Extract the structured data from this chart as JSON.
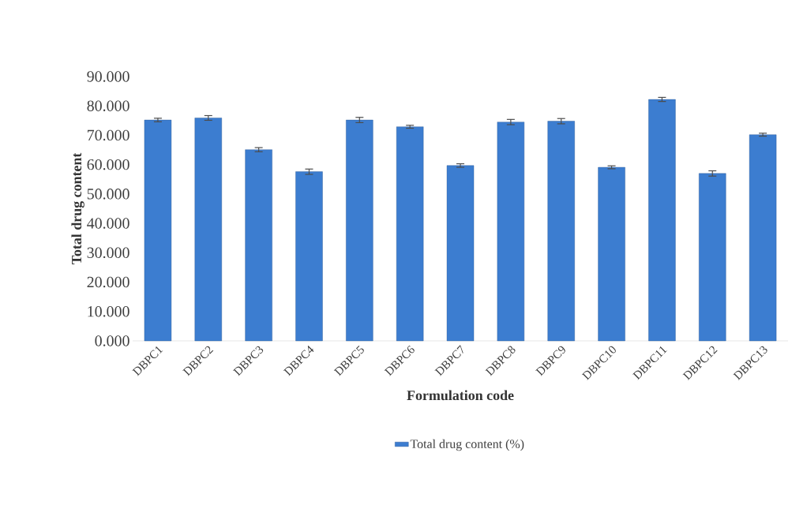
{
  "chart_data": {
    "type": "bar",
    "xlabel": "Formulation code",
    "ylabel": "Total drug content",
    "categories": [
      "DBPC1",
      "DBPC2",
      "DBPC3",
      "DBPC4",
      "DBPC5",
      "DBPC6",
      "DBPC7",
      "DBPC8",
      "DBPC9",
      "DBPC10",
      "DBPC11",
      "DBPC12",
      "DBPC13"
    ],
    "series": [
      {
        "name": "Total drug content (%)",
        "color": "#3c7dd0",
        "values": [
          75.2,
          75.9,
          65.1,
          57.6,
          75.2,
          72.9,
          59.7,
          74.5,
          74.8,
          59.1,
          82.2,
          57.0,
          70.2
        ],
        "errors": [
          0.6,
          0.8,
          0.7,
          0.9,
          0.9,
          0.5,
          0.6,
          0.9,
          0.9,
          0.5,
          0.7,
          0.9,
          0.5
        ]
      }
    ],
    "ylim": [
      0,
      90
    ],
    "yticks": [
      {
        "value": 0,
        "label": "0.000"
      },
      {
        "value": 10,
        "label": "10.000"
      },
      {
        "value": 20,
        "label": "20.000"
      },
      {
        "value": 30,
        "label": "30.000"
      },
      {
        "value": 40,
        "label": "40.000"
      },
      {
        "value": 50,
        "label": "50.000"
      },
      {
        "value": 60,
        "label": "60.000"
      },
      {
        "value": 70,
        "label": "70.000"
      },
      {
        "value": 80,
        "label": "80.000"
      },
      {
        "value": 90,
        "label": "90.000"
      }
    ],
    "grid": false,
    "legend": "bottom"
  }
}
